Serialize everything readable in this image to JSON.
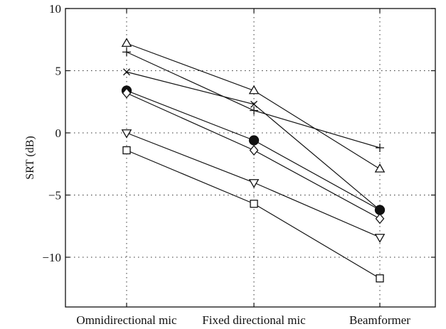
{
  "chart_data": {
    "type": "line",
    "title": "",
    "xlabel": "",
    "ylabel": "SRT (dB)",
    "categories": [
      "Omnidirectional mic",
      "Fixed directional mic",
      "Beamformer"
    ],
    "ylim": [
      -14,
      10
    ],
    "yticks": [
      10,
      5,
      0,
      -5,
      -10
    ],
    "ytick_labels": [
      "10",
      "5",
      "0",
      "−5",
      "−10"
    ],
    "grid": true,
    "legend": "none",
    "series": [
      {
        "marker": "triangle-up",
        "values": [
          7.2,
          3.4,
          -2.9
        ]
      },
      {
        "marker": "plus",
        "values": [
          6.5,
          1.8,
          -1.2
        ]
      },
      {
        "marker": "x",
        "values": [
          4.9,
          2.3,
          -6.2
        ]
      },
      {
        "marker": "circle-filled",
        "values": [
          3.4,
          -0.6,
          -6.2
        ]
      },
      {
        "marker": "diamond",
        "values": [
          3.2,
          -1.4,
          -6.9
        ]
      },
      {
        "marker": "triangle-down",
        "values": [
          0.0,
          -4.0,
          -8.4
        ]
      },
      {
        "marker": "square",
        "values": [
          -1.4,
          -5.7,
          -11.7
        ]
      }
    ]
  }
}
